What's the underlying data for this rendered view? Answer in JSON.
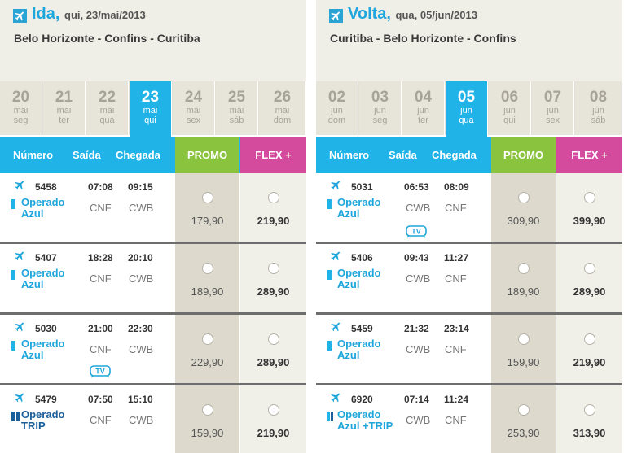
{
  "outbound": {
    "direction": "Ida,",
    "date": "qui, 23/mai/2013",
    "route": "Belo Horizonte - Confins - Curitiba",
    "dates": [
      {
        "day": "20",
        "month": "mai",
        "weekday": "seg",
        "active": false
      },
      {
        "day": "21",
        "month": "mai",
        "weekday": "ter",
        "active": false
      },
      {
        "day": "22",
        "month": "mai",
        "weekday": "qua",
        "active": false
      },
      {
        "day": "23",
        "month": "mai",
        "weekday": "qui",
        "active": true
      },
      {
        "day": "24",
        "month": "mai",
        "weekday": "sex",
        "active": false
      },
      {
        "day": "25",
        "month": "mai",
        "weekday": "sáb",
        "active": false
      },
      {
        "day": "26",
        "month": "mai",
        "weekday": "dom",
        "active": false
      }
    ],
    "columns": {
      "number": "Número",
      "departure": "Saída",
      "arrival": "Chegada",
      "promo": "PROMO",
      "flex": "FLEX +"
    },
    "flights": [
      {
        "number": "5458",
        "departure": "07:08",
        "arrival": "09:15",
        "operator_line1": "Operado",
        "operator_line2": "Azul",
        "from": "CNF",
        "to": "CWB",
        "promo": "179,90",
        "flex": "219,90",
        "tv": false,
        "operator_type": "azul"
      },
      {
        "number": "5407",
        "departure": "18:28",
        "arrival": "20:10",
        "operator_line1": "Operado",
        "operator_line2": "Azul",
        "from": "CNF",
        "to": "CWB",
        "promo": "189,90",
        "flex": "289,90",
        "tv": false,
        "operator_type": "azul"
      },
      {
        "number": "5030",
        "departure": "21:00",
        "arrival": "22:30",
        "operator_line1": "Operado",
        "operator_line2": "Azul",
        "from": "CNF",
        "to": "CWB",
        "promo": "229,90",
        "flex": "289,90",
        "tv": true,
        "operator_type": "azul"
      },
      {
        "number": "5479",
        "departure": "07:50",
        "arrival": "15:10",
        "operator_line1": "Operado",
        "operator_line2": "TRIP",
        "from": "CNF",
        "to": "CWB",
        "promo": "159,90",
        "flex": "219,90",
        "tv": false,
        "operator_type": "trip"
      }
    ]
  },
  "return": {
    "direction": "Volta,",
    "date": "qua, 05/jun/2013",
    "route": "Curitiba - Belo Horizonte - Confins",
    "dates": [
      {
        "day": "02",
        "month": "jun",
        "weekday": "dom",
        "active": false
      },
      {
        "day": "03",
        "month": "jun",
        "weekday": "seg",
        "active": false
      },
      {
        "day": "04",
        "month": "jun",
        "weekday": "ter",
        "active": false
      },
      {
        "day": "05",
        "month": "jun",
        "weekday": "qua",
        "active": true
      },
      {
        "day": "06",
        "month": "jun",
        "weekday": "qui",
        "active": false
      },
      {
        "day": "07",
        "month": "jun",
        "weekday": "sex",
        "active": false
      },
      {
        "day": "08",
        "month": "jun",
        "weekday": "sáb",
        "active": false
      }
    ],
    "columns": {
      "number": "Número",
      "departure": "Saída",
      "arrival": "Chegada",
      "promo": "PROMO",
      "flex": "FLEX +"
    },
    "flights": [
      {
        "number": "5031",
        "departure": "06:53",
        "arrival": "08:09",
        "operator_line1": "Operado",
        "operator_line2": "Azul",
        "from": "CWB",
        "to": "CNF",
        "promo": "309,90",
        "flex": "399,90",
        "tv": true,
        "operator_type": "azul"
      },
      {
        "number": "5406",
        "departure": "09:43",
        "arrival": "11:27",
        "operator_line1": "Operado",
        "operator_line2": "Azul",
        "from": "CWB",
        "to": "CNF",
        "promo": "189,90",
        "flex": "289,90",
        "tv": false,
        "operator_type": "azul"
      },
      {
        "number": "5459",
        "departure": "21:32",
        "arrival": "23:14",
        "operator_line1": "Operado",
        "operator_line2": "Azul",
        "from": "CWB",
        "to": "CNF",
        "promo": "159,90",
        "flex": "219,90",
        "tv": false,
        "operator_type": "azul"
      },
      {
        "number": "6920",
        "departure": "07:14",
        "arrival": "11:24",
        "operator_line1": "Operado",
        "operator_line2": "Azul +TRIP",
        "from": "CWB",
        "to": "CNF",
        "promo": "253,90",
        "flex": "313,90",
        "tv": false,
        "operator_type": "mixed"
      }
    ]
  },
  "tv_badge_label": "TV",
  "colors": {
    "accent": "#1fb3e8",
    "promo": "#8ac43f",
    "flex": "#d44a9c",
    "trip": "#1a5e9a"
  },
  "icons": {
    "flight": "airplane-icon",
    "tv": "tv-icon"
  }
}
